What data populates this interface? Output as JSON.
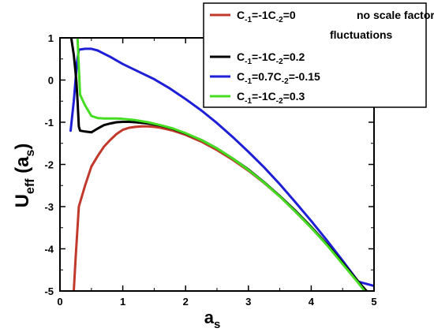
{
  "chart_data": {
    "type": "line",
    "xlim": [
      0,
      5
    ],
    "ylim": [
      -5,
      1
    ],
    "x_ticks": [
      0,
      1,
      2,
      3,
      4,
      5
    ],
    "y_ticks": [
      1,
      0,
      -1,
      -2,
      -3,
      -4,
      -5
    ],
    "x_tick_labels": [
      "0",
      "1",
      "2",
      "3",
      "4",
      "5"
    ],
    "y_tick_labels": [
      "1",
      "0",
      "-1",
      "-2",
      "-3",
      "-4",
      "-5"
    ],
    "xlabel": {
      "base": "a",
      "sub": "s"
    },
    "ylabel": {
      "base": "U",
      "sub": "eff",
      "arg_open": " (a",
      "arg_sub": "s",
      "arg_close": ")"
    },
    "grid": false,
    "legend_position": "top-right",
    "series": [
      {
        "color": "#c0392b",
        "legend": {
          "c1_base": "C",
          "c1_sub": "-1",
          "c1_val": "=-1",
          "c2_base": "C",
          "c2_sub": "-2",
          "c2_val": "=0",
          "note_line1": "no scale factor",
          "note_line2": "fluctuations"
        },
        "points": [
          [
            0.22,
            -5.0
          ],
          [
            0.25,
            -4.2
          ],
          [
            0.3,
            -3.0
          ],
          [
            0.4,
            -2.5
          ],
          [
            0.5,
            -2.05
          ],
          [
            0.6,
            -1.8
          ],
          [
            0.7,
            -1.58
          ],
          [
            0.8,
            -1.42
          ],
          [
            0.9,
            -1.28
          ],
          [
            1.0,
            -1.18
          ],
          [
            1.1,
            -1.13
          ],
          [
            1.2,
            -1.11
          ],
          [
            1.3,
            -1.1
          ],
          [
            1.4,
            -1.1
          ],
          [
            1.5,
            -1.11
          ],
          [
            1.6,
            -1.13
          ],
          [
            1.8,
            -1.2
          ],
          [
            2.0,
            -1.3
          ],
          [
            2.25,
            -1.46
          ],
          [
            2.5,
            -1.66
          ],
          [
            2.75,
            -1.89
          ],
          [
            3.0,
            -2.15
          ],
          [
            3.25,
            -2.44
          ],
          [
            3.5,
            -2.76
          ],
          [
            3.75,
            -3.12
          ],
          [
            4.0,
            -3.5
          ],
          [
            4.25,
            -3.9
          ],
          [
            4.5,
            -4.35
          ],
          [
            4.75,
            -4.8
          ],
          [
            4.88,
            -5.0
          ]
        ]
      },
      {
        "color": "#000000",
        "legend": {
          "c1_base": "C",
          "c1_sub": "-1",
          "c1_val": "=-1",
          "c2_base": "C",
          "c2_sub": "-2",
          "c2_val": "=0.2"
        },
        "points": [
          [
            0.18,
            1.0
          ],
          [
            0.22,
            0.6
          ],
          [
            0.26,
            0.0
          ],
          [
            0.28,
            -0.5
          ],
          [
            0.3,
            -1.1
          ],
          [
            0.32,
            -1.2
          ],
          [
            0.4,
            -1.22
          ],
          [
            0.5,
            -1.24
          ],
          [
            0.6,
            -1.15
          ],
          [
            0.7,
            -1.07
          ],
          [
            0.8,
            -1.03
          ],
          [
            0.9,
            -1.0
          ],
          [
            1.0,
            -0.99
          ],
          [
            1.1,
            -0.99
          ],
          [
            1.2,
            -1.0
          ],
          [
            1.4,
            -1.03
          ],
          [
            1.6,
            -1.08
          ],
          [
            1.8,
            -1.16
          ],
          [
            2.0,
            -1.27
          ],
          [
            2.25,
            -1.42
          ],
          [
            2.5,
            -1.62
          ],
          [
            2.75,
            -1.86
          ],
          [
            3.0,
            -2.12
          ],
          [
            3.25,
            -2.42
          ],
          [
            3.5,
            -2.75
          ],
          [
            3.75,
            -3.1
          ],
          [
            4.0,
            -3.48
          ],
          [
            4.25,
            -3.89
          ],
          [
            4.5,
            -4.33
          ],
          [
            4.75,
            -4.78
          ],
          [
            4.88,
            -5.0
          ]
        ]
      },
      {
        "color": "#1f1fd6",
        "legend": {
          "c1_base": "C",
          "c1_sub": "-1",
          "c1_val": "=0.7",
          "c2_base": "C",
          "c2_sub": "-2",
          "c2_val": "=-0.15"
        },
        "points": [
          [
            0.17,
            -1.2
          ],
          [
            0.22,
            -0.5
          ],
          [
            0.27,
            0.4
          ],
          [
            0.3,
            0.72
          ],
          [
            0.4,
            0.74
          ],
          [
            0.5,
            0.74
          ],
          [
            0.6,
            0.7
          ],
          [
            0.8,
            0.55
          ],
          [
            1.0,
            0.38
          ],
          [
            1.25,
            0.2
          ],
          [
            1.5,
            0.02
          ],
          [
            1.75,
            -0.2
          ],
          [
            2.0,
            -0.45
          ],
          [
            2.25,
            -0.72
          ],
          [
            2.5,
            -1.02
          ],
          [
            2.75,
            -1.35
          ],
          [
            3.0,
            -1.7
          ],
          [
            3.25,
            -2.07
          ],
          [
            3.5,
            -2.47
          ],
          [
            3.75,
            -2.9
          ],
          [
            4.0,
            -3.34
          ],
          [
            4.25,
            -3.8
          ],
          [
            4.5,
            -4.28
          ],
          [
            4.75,
            -4.78
          ],
          [
            5.0,
            -4.88
          ]
        ]
      },
      {
        "color": "#44dd22",
        "legend": {
          "c1_base": "C",
          "c1_sub": "-1",
          "c1_val": "=-1",
          "c2_base": "C",
          "c2_sub": "-2",
          "c2_val": "=0.3"
        },
        "points": [
          [
            0.28,
            1.0
          ],
          [
            0.3,
            0.3
          ],
          [
            0.32,
            -0.35
          ],
          [
            0.4,
            -0.6
          ],
          [
            0.5,
            -0.85
          ],
          [
            0.6,
            -0.9
          ],
          [
            0.7,
            -0.91
          ],
          [
            0.8,
            -0.91
          ],
          [
            0.9,
            -0.91
          ],
          [
            1.0,
            -0.92
          ],
          [
            1.2,
            -0.95
          ],
          [
            1.4,
            -1.0
          ],
          [
            1.6,
            -1.07
          ],
          [
            1.8,
            -1.15
          ],
          [
            2.0,
            -1.26
          ],
          [
            2.25,
            -1.42
          ],
          [
            2.5,
            -1.62
          ],
          [
            2.75,
            -1.86
          ],
          [
            3.0,
            -2.13
          ],
          [
            3.25,
            -2.43
          ],
          [
            3.5,
            -2.76
          ],
          [
            3.75,
            -3.12
          ],
          [
            4.0,
            -3.5
          ],
          [
            4.25,
            -3.91
          ],
          [
            4.5,
            -4.36
          ],
          [
            4.75,
            -4.81
          ],
          [
            4.85,
            -5.0
          ]
        ]
      }
    ]
  }
}
